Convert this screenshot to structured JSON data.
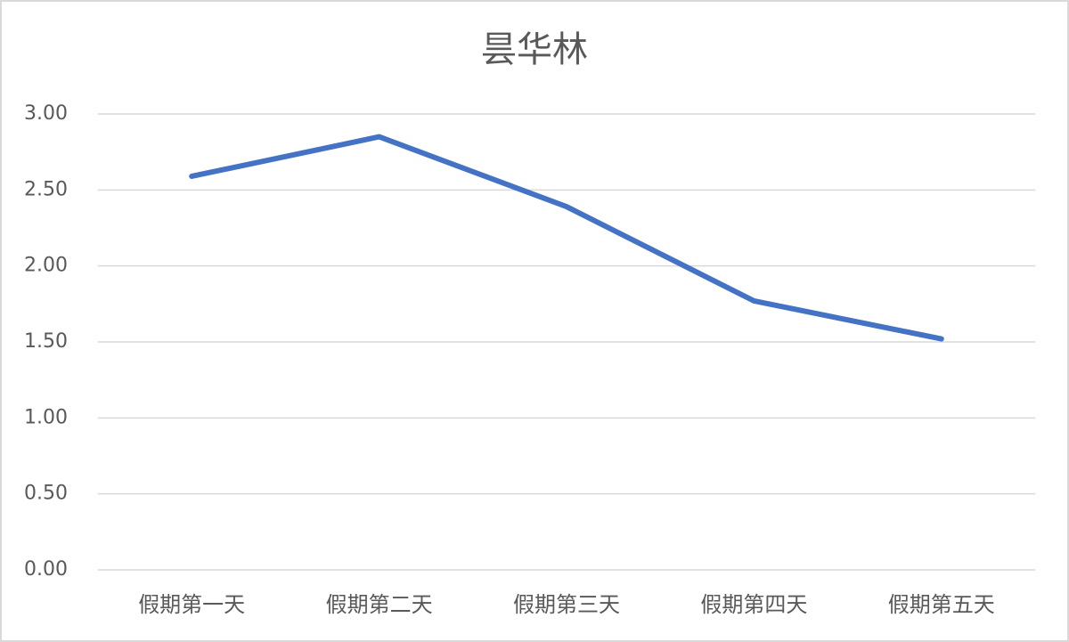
{
  "chart_data": {
    "type": "line",
    "title": "昙华林",
    "categories": [
      "假期第一天",
      "假期第二天",
      "假期第三天",
      "假期第四天",
      "假期第五天"
    ],
    "values": [
      2.59,
      2.85,
      2.39,
      1.77,
      1.52
    ],
    "color": "#4472c4",
    "ylim": [
      0,
      3
    ],
    "yticks": [
      {
        "value": 0,
        "label": "0.00"
      },
      {
        "value": 0.5,
        "label": "0.50"
      },
      {
        "value": 1,
        "label": "1.00"
      },
      {
        "value": 1.5,
        "label": "1.50"
      },
      {
        "value": 2,
        "label": "2.00"
      },
      {
        "value": 2.5,
        "label": "2.50"
      },
      {
        "value": 3,
        "label": "3.00"
      }
    ],
    "grid": true
  }
}
